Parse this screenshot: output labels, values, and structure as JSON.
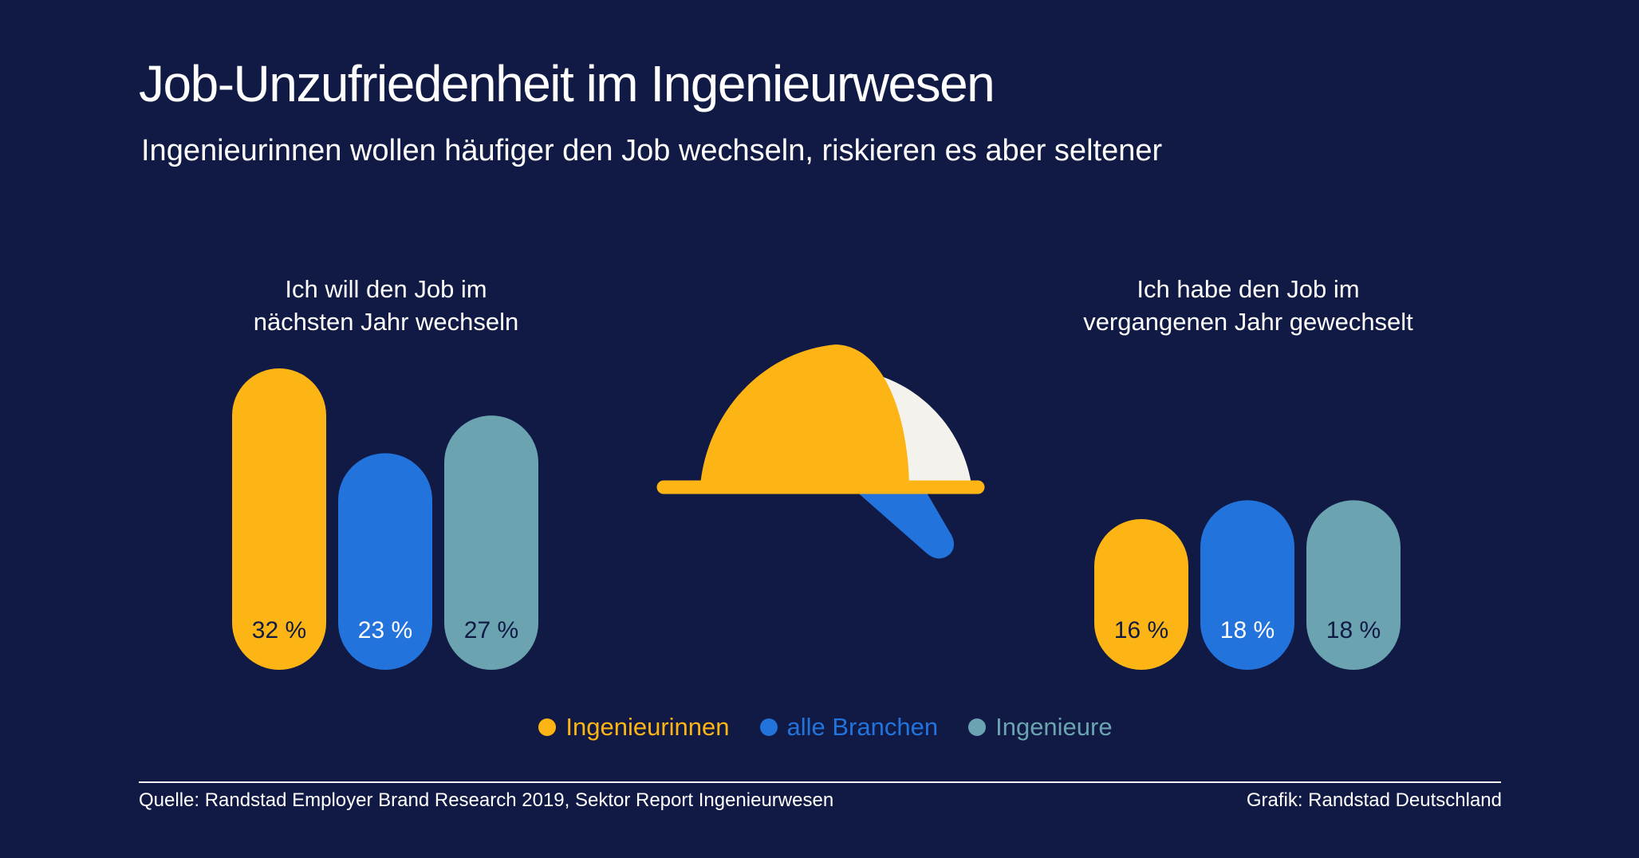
{
  "title": "Job-Unzufriedenheit im Ingenieurwesen",
  "subtitle": "Ingenieurinnen wollen häufiger den Job wechseln, riskieren es aber seltener",
  "colors": {
    "background": "#101a44",
    "ingenieurinnen": "#fdb515",
    "alle_branchen": "#2273dc",
    "ingenieure": "#6ba4b0",
    "helmet_highlight": "#f4f2ec"
  },
  "panels": {
    "left": {
      "title_line1": "Ich will den Job im",
      "title_line2": "nächsten Jahr wechseln"
    },
    "right": {
      "title_line1": "Ich habe den Job im",
      "title_line2": "vergangenen Jahr gewechselt"
    }
  },
  "chart_data": {
    "type": "bar",
    "series": [
      {
        "name": "Ingenieurinnen",
        "color_key": "ingenieurinnen"
      },
      {
        "name": "alle Branchen",
        "color_key": "alle_branchen"
      },
      {
        "name": "Ingenieure",
        "color_key": "ingenieure"
      }
    ],
    "groups": [
      {
        "key": "left",
        "values": [
          32,
          23,
          27
        ],
        "labels": [
          "32 %",
          "23 %",
          "27 %"
        ]
      },
      {
        "key": "right",
        "values": [
          16,
          18,
          18
        ],
        "labels": [
          "16 %",
          "18 %",
          "18 %"
        ]
      }
    ],
    "unit": "%",
    "ylim": [
      0,
      32
    ]
  },
  "legend": [
    {
      "label": "Ingenieurinnen",
      "color": "#fdb515"
    },
    {
      "label": "alle Branchen",
      "color": "#2273dc"
    },
    {
      "label": "Ingenieure",
      "color": "#6ba4b0"
    }
  ],
  "icon": "hard-hat-icon",
  "footer": {
    "source": "Quelle: Randstad Employer Brand Research 2019, Sektor Report Ingenieurwesen",
    "credit": "Grafik: Randstad Deutschland"
  }
}
